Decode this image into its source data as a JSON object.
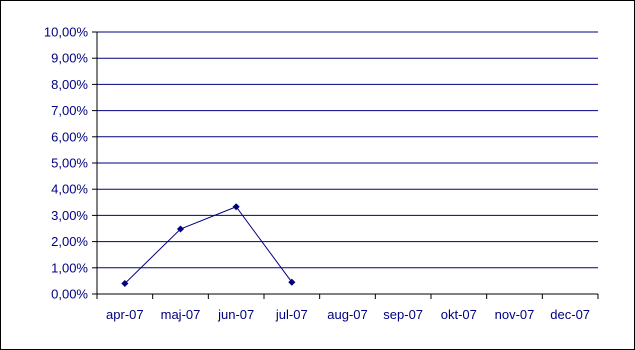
{
  "chart_data": {
    "type": "line",
    "title": "",
    "xlabel": "",
    "ylabel": "",
    "categories": [
      "apr-07",
      "maj-07",
      "jun-07",
      "jul-07",
      "aug-07",
      "sep-07",
      "okt-07",
      "nov-07",
      "dec-07"
    ],
    "y_ticks": [
      "0,00%",
      "1,00%",
      "2,00%",
      "3,00%",
      "4,00%",
      "5,00%",
      "6,00%",
      "7,00%",
      "8,00%",
      "9,00%",
      "10,00%"
    ],
    "ylim": [
      0,
      10
    ],
    "y_unit": "%",
    "grid": true,
    "legend": "none",
    "series": [
      {
        "values": [
          0.4,
          2.48,
          3.33,
          0.45,
          null,
          null,
          null,
          null,
          null
        ]
      }
    ],
    "colors": {
      "line": "#000080",
      "grid": "#000080",
      "axis": "#000000",
      "labels": "#000080"
    }
  }
}
